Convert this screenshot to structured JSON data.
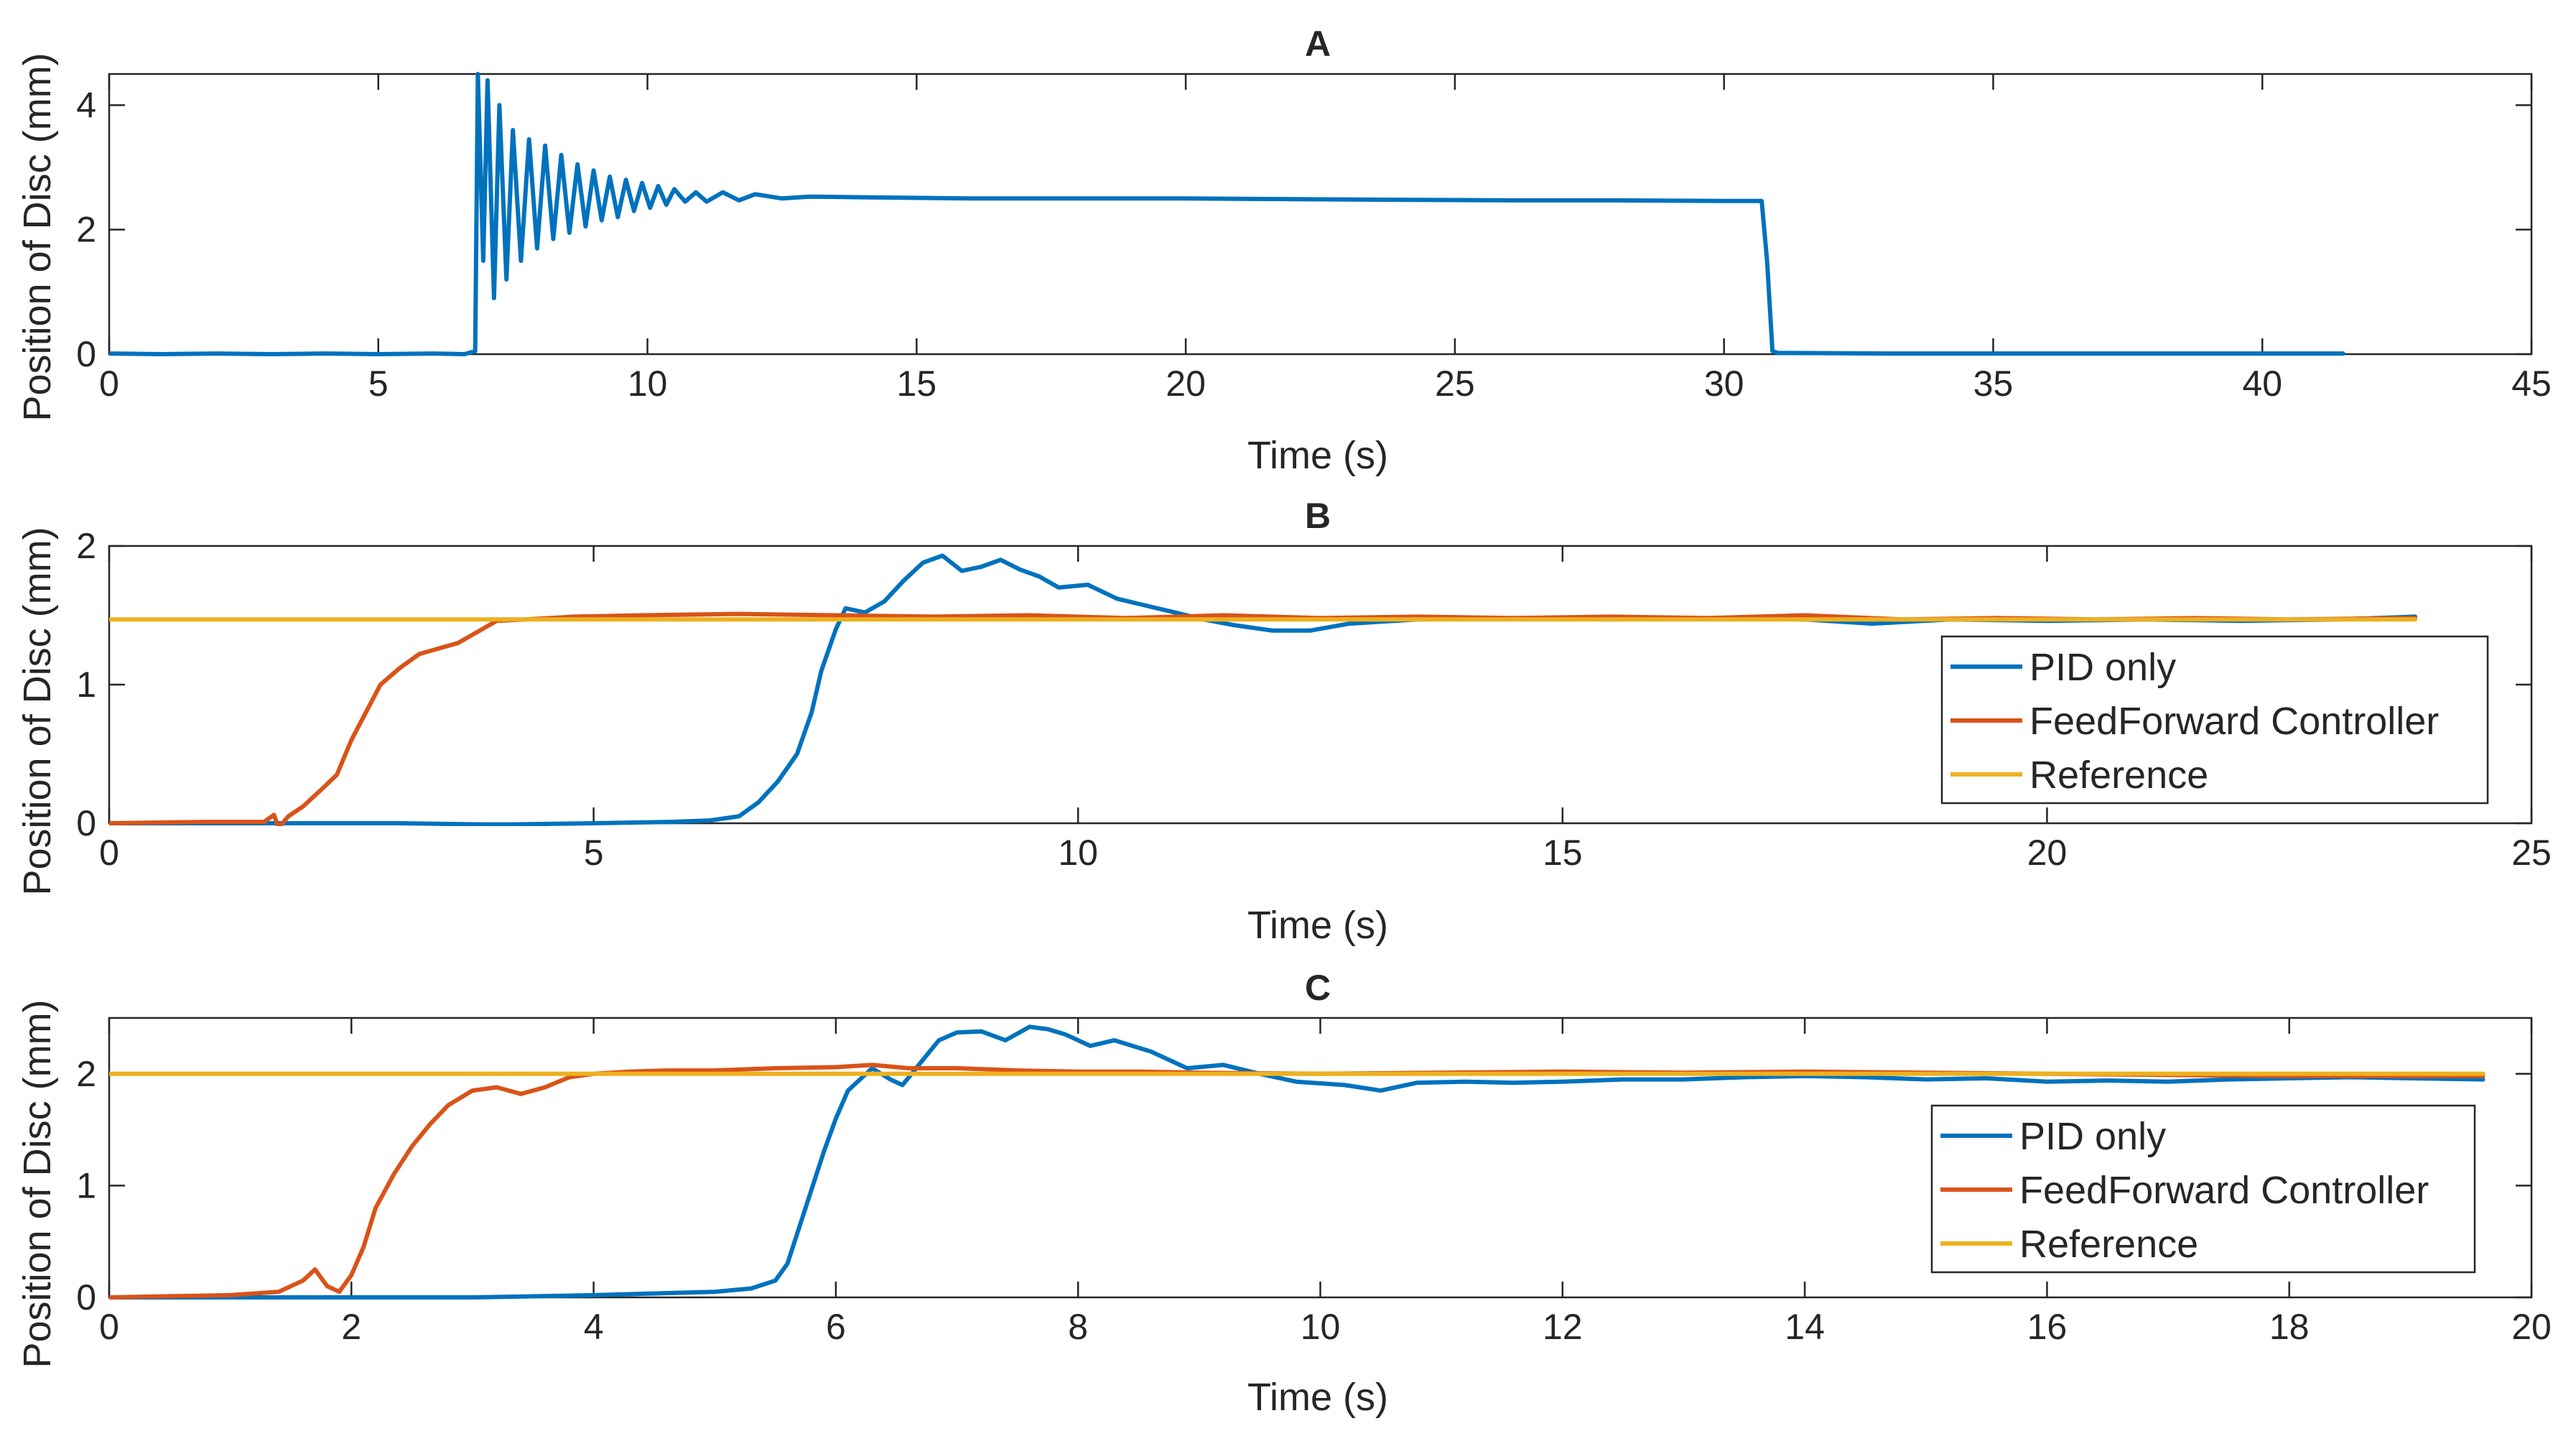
{
  "chart_data": [
    {
      "id": "A",
      "type": "line",
      "title": "A",
      "xlabel": "Time (s)",
      "ylabel": "Position of Disc (mm)",
      "xlim": [
        0,
        45
      ],
      "ylim": [
        0,
        4.5
      ],
      "xticks": [
        0,
        5,
        10,
        15,
        20,
        25,
        30,
        35,
        40,
        45
      ],
      "yticks": [
        0,
        2,
        4
      ],
      "legend": null,
      "series": [
        {
          "color": "#0072BD",
          "points": [
            [
              0,
              0.01
            ],
            [
              1,
              0.0
            ],
            [
              2,
              0.01
            ],
            [
              3,
              0.0
            ],
            [
              4,
              0.01
            ],
            [
              5,
              0.0
            ],
            [
              6,
              0.01
            ],
            [
              6.6,
              0.0
            ],
            [
              6.8,
              0.05
            ],
            [
              6.85,
              4.5
            ],
            [
              6.95,
              1.5
            ],
            [
              7.03,
              4.4
            ],
            [
              7.15,
              0.9
            ],
            [
              7.25,
              4.0
            ],
            [
              7.38,
              1.2
            ],
            [
              7.5,
              3.6
            ],
            [
              7.65,
              1.5
            ],
            [
              7.8,
              3.45
            ],
            [
              7.95,
              1.7
            ],
            [
              8.1,
              3.35
            ],
            [
              8.25,
              1.85
            ],
            [
              8.4,
              3.2
            ],
            [
              8.55,
              1.95
            ],
            [
              8.7,
              3.05
            ],
            [
              8.85,
              2.05
            ],
            [
              9.0,
              2.95
            ],
            [
              9.15,
              2.15
            ],
            [
              9.3,
              2.85
            ],
            [
              9.45,
              2.2
            ],
            [
              9.6,
              2.8
            ],
            [
              9.75,
              2.3
            ],
            [
              9.9,
              2.75
            ],
            [
              10.05,
              2.35
            ],
            [
              10.2,
              2.7
            ],
            [
              10.35,
              2.4
            ],
            [
              10.5,
              2.65
            ],
            [
              10.7,
              2.45
            ],
            [
              10.9,
              2.6
            ],
            [
              11.1,
              2.45
            ],
            [
              11.4,
              2.6
            ],
            [
              11.7,
              2.47
            ],
            [
              12.0,
              2.57
            ],
            [
              12.5,
              2.5
            ],
            [
              13.0,
              2.53
            ],
            [
              14,
              2.52
            ],
            [
              16,
              2.5
            ],
            [
              18,
              2.5
            ],
            [
              20,
              2.5
            ],
            [
              22,
              2.49
            ],
            [
              24,
              2.48
            ],
            [
              26,
              2.47
            ],
            [
              28,
              2.47
            ],
            [
              30,
              2.46
            ],
            [
              30.7,
              2.46
            ],
            [
              30.8,
              1.5
            ],
            [
              30.9,
              0.05
            ],
            [
              31,
              0.02
            ],
            [
              33,
              0.01
            ],
            [
              35,
              0.01
            ],
            [
              37,
              0.01
            ],
            [
              39,
              0.01
            ],
            [
              41.5,
              0.01
            ]
          ]
        }
      ]
    },
    {
      "id": "B",
      "type": "line",
      "title": "B",
      "xlabel": "Time (s)",
      "ylabel": "Position of Disc (mm)",
      "xlim": [
        0,
        25
      ],
      "ylim": [
        0,
        2
      ],
      "xticks": [
        0,
        5,
        10,
        15,
        20,
        25
      ],
      "yticks": [
        0,
        1,
        2
      ],
      "legend": "right",
      "series": [
        {
          "name": "PID only",
          "color": "#0072BD",
          "points": [
            [
              0,
              0.0
            ],
            [
              1,
              0.0
            ],
            [
              2,
              0.0
            ],
            [
              3,
              0.0
            ],
            [
              4,
              -0.01
            ],
            [
              5,
              0.0
            ],
            [
              5.8,
              0.01
            ],
            [
              6.2,
              0.02
            ],
            [
              6.5,
              0.05
            ],
            [
              6.7,
              0.15
            ],
            [
              6.9,
              0.3
            ],
            [
              7.1,
              0.5
            ],
            [
              7.25,
              0.8
            ],
            [
              7.35,
              1.1
            ],
            [
              7.5,
              1.4
            ],
            [
              7.6,
              1.55
            ],
            [
              7.8,
              1.52
            ],
            [
              8.0,
              1.6
            ],
            [
              8.2,
              1.75
            ],
            [
              8.4,
              1.88
            ],
            [
              8.6,
              1.93
            ],
            [
              8.8,
              1.82
            ],
            [
              9.0,
              1.85
            ],
            [
              9.2,
              1.9
            ],
            [
              9.4,
              1.83
            ],
            [
              9.6,
              1.78
            ],
            [
              9.8,
              1.7
            ],
            [
              10.1,
              1.72
            ],
            [
              10.4,
              1.62
            ],
            [
              10.7,
              1.57
            ],
            [
              11.0,
              1.52
            ],
            [
              11.3,
              1.47
            ],
            [
              11.6,
              1.43
            ],
            [
              12.0,
              1.39
            ],
            [
              12.4,
              1.39
            ],
            [
              12.8,
              1.44
            ],
            [
              13.5,
              1.47
            ],
            [
              14.5,
              1.48
            ],
            [
              15.5,
              1.47
            ],
            [
              16.5,
              1.48
            ],
            [
              17.5,
              1.47
            ],
            [
              18.2,
              1.44
            ],
            [
              19,
              1.47
            ],
            [
              20,
              1.46
            ],
            [
              21,
              1.47
            ],
            [
              22,
              1.46
            ],
            [
              23,
              1.47
            ],
            [
              23.8,
              1.49
            ]
          ]
        },
        {
          "name": "FeedForward Controller",
          "color": "#D95319",
          "points": [
            [
              0,
              0.0
            ],
            [
              1,
              0.01
            ],
            [
              1.6,
              0.01
            ],
            [
              1.7,
              0.06
            ],
            [
              1.75,
              -0.03
            ],
            [
              1.85,
              0.05
            ],
            [
              2.0,
              0.12
            ],
            [
              2.2,
              0.25
            ],
            [
              2.35,
              0.35
            ],
            [
              2.5,
              0.6
            ],
            [
              2.65,
              0.8
            ],
            [
              2.8,
              1.0
            ],
            [
              3.0,
              1.12
            ],
            [
              3.2,
              1.22
            ],
            [
              3.4,
              1.26
            ],
            [
              3.6,
              1.3
            ],
            [
              3.8,
              1.38
            ],
            [
              4.0,
              1.46
            ],
            [
              4.3,
              1.47
            ],
            [
              4.8,
              1.49
            ],
            [
              5.5,
              1.5
            ],
            [
              6.5,
              1.51
            ],
            [
              7.5,
              1.5
            ],
            [
              8.5,
              1.49
            ],
            [
              9.5,
              1.5
            ],
            [
              10.5,
              1.48
            ],
            [
              11.5,
              1.5
            ],
            [
              12.5,
              1.48
            ],
            [
              13.5,
              1.49
            ],
            [
              14.5,
              1.48
            ],
            [
              15.5,
              1.49
            ],
            [
              16.5,
              1.48
            ],
            [
              17.5,
              1.5
            ],
            [
              18.5,
              1.47
            ],
            [
              19.5,
              1.48
            ],
            [
              20.5,
              1.47
            ],
            [
              21.5,
              1.48
            ],
            [
              22.5,
              1.47
            ],
            [
              23.8,
              1.48
            ]
          ]
        },
        {
          "name": "Reference",
          "color": "#EDB120",
          "points": [
            [
              0,
              1.47
            ],
            [
              23.8,
              1.47
            ]
          ]
        }
      ]
    },
    {
      "id": "C",
      "type": "line",
      "title": "C",
      "xlabel": "Time (s)",
      "ylabel": "Position of Disc (mm)",
      "xlim": [
        0,
        20
      ],
      "ylim": [
        0,
        2.5
      ],
      "xticks": [
        0,
        2,
        4,
        6,
        8,
        10,
        12,
        14,
        16,
        18,
        20
      ],
      "yticks": [
        0,
        1,
        2
      ],
      "legend": "right",
      "series": [
        {
          "name": "PID only",
          "color": "#0072BD",
          "points": [
            [
              0,
              0.0
            ],
            [
              1,
              0.0
            ],
            [
              2,
              0.0
            ],
            [
              3,
              0.0
            ],
            [
              4,
              0.02
            ],
            [
              5,
              0.05
            ],
            [
              5.3,
              0.08
            ],
            [
              5.5,
              0.15
            ],
            [
              5.6,
              0.3
            ],
            [
              5.75,
              0.8
            ],
            [
              5.9,
              1.3
            ],
            [
              6.0,
              1.6
            ],
            [
              6.1,
              1.85
            ],
            [
              6.2,
              1.95
            ],
            [
              6.3,
              2.05
            ],
            [
              6.45,
              1.95
            ],
            [
              6.55,
              1.9
            ],
            [
              6.7,
              2.1
            ],
            [
              6.85,
              2.3
            ],
            [
              7.0,
              2.37
            ],
            [
              7.2,
              2.38
            ],
            [
              7.4,
              2.3
            ],
            [
              7.6,
              2.42
            ],
            [
              7.75,
              2.4
            ],
            [
              7.9,
              2.35
            ],
            [
              8.1,
              2.25
            ],
            [
              8.3,
              2.3
            ],
            [
              8.6,
              2.2
            ],
            [
              8.9,
              2.05
            ],
            [
              9.2,
              2.08
            ],
            [
              9.5,
              2.0
            ],
            [
              9.8,
              1.93
            ],
            [
              10.2,
              1.9
            ],
            [
              10.5,
              1.85
            ],
            [
              10.8,
              1.92
            ],
            [
              11.2,
              1.93
            ],
            [
              11.6,
              1.92
            ],
            [
              12,
              1.93
            ],
            [
              12.5,
              1.95
            ],
            [
              13,
              1.95
            ],
            [
              13.5,
              1.97
            ],
            [
              14,
              1.98
            ],
            [
              14.5,
              1.97
            ],
            [
              15,
              1.95
            ],
            [
              15.5,
              1.96
            ],
            [
              16,
              1.93
            ],
            [
              16.5,
              1.94
            ],
            [
              17,
              1.93
            ],
            [
              17.5,
              1.95
            ],
            [
              18,
              1.96
            ],
            [
              18.5,
              1.97
            ],
            [
              19,
              1.96
            ],
            [
              19.6,
              1.95
            ]
          ]
        },
        {
          "name": "FeedForward Controller",
          "color": "#D95319",
          "points": [
            [
              0,
              0.0
            ],
            [
              0.5,
              0.01
            ],
            [
              1.0,
              0.02
            ],
            [
              1.4,
              0.05
            ],
            [
              1.6,
              0.15
            ],
            [
              1.7,
              0.25
            ],
            [
              1.8,
              0.1
            ],
            [
              1.9,
              0.05
            ],
            [
              2.0,
              0.2
            ],
            [
              2.1,
              0.45
            ],
            [
              2.2,
              0.8
            ],
            [
              2.35,
              1.1
            ],
            [
              2.5,
              1.35
            ],
            [
              2.65,
              1.55
            ],
            [
              2.8,
              1.72
            ],
            [
              3.0,
              1.85
            ],
            [
              3.2,
              1.88
            ],
            [
              3.4,
              1.82
            ],
            [
              3.6,
              1.88
            ],
            [
              3.8,
              1.97
            ],
            [
              4.0,
              2.0
            ],
            [
              4.3,
              2.02
            ],
            [
              4.6,
              2.03
            ],
            [
              5.0,
              2.03
            ],
            [
              5.5,
              2.05
            ],
            [
              6.0,
              2.06
            ],
            [
              6.3,
              2.08
            ],
            [
              6.6,
              2.05
            ],
            [
              7,
              2.05
            ],
            [
              7.5,
              2.03
            ],
            [
              8,
              2.02
            ],
            [
              8.5,
              2.02
            ],
            [
              9,
              2.01
            ],
            [
              10,
              2.0
            ],
            [
              11,
              2.01
            ],
            [
              12,
              2.02
            ],
            [
              13,
              2.01
            ],
            [
              14,
              2.02
            ],
            [
              15,
              2.01
            ],
            [
              16,
              2.0
            ],
            [
              17,
              1.99
            ],
            [
              18,
              1.98
            ],
            [
              19,
              1.98
            ],
            [
              19.6,
              1.98
            ]
          ]
        },
        {
          "name": "Reference",
          "color": "#EDB120",
          "points": [
            [
              0,
              2.0
            ],
            [
              19.6,
              2.0
            ]
          ]
        }
      ]
    }
  ]
}
